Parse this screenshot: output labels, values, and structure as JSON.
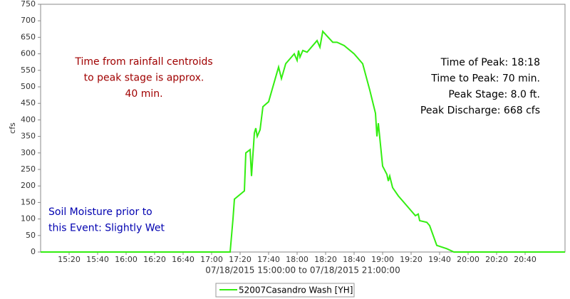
{
  "chart_data": {
    "type": "line",
    "y_label": "cfs",
    "x_label": "07/18/2015 15:00:00 to 07/18/2015 21:00:00",
    "x": [
      "15:00",
      "17:13",
      "17:15",
      "17:16",
      "17:23",
      "17:24",
      "17:27",
      "17:28",
      "17:30",
      "17:31",
      "17:32",
      "17:34",
      "17:36",
      "17:40",
      "17:45",
      "17:47",
      "17:49",
      "17:52",
      "17:56",
      "17:58",
      "18:00",
      "18:01",
      "18:02",
      "18:04",
      "18:07",
      "18:14",
      "18:16",
      "18:18",
      "18:25",
      "18:28",
      "18:33",
      "18:40",
      "18:46",
      "18:51",
      "18:55",
      "18:56",
      "18:57",
      "19:00",
      "19:03",
      "19:04",
      "19:05",
      "19:07",
      "19:11",
      "19:15",
      "19:20",
      "19:23",
      "19:25",
      "19:26",
      "19:31",
      "19:33",
      "19:38",
      "19:45",
      "19:50",
      "21:08"
    ],
    "series": [
      {
        "name": "52007Casandro Wash [YH]",
        "color": "#33ee11",
        "values": [
          0,
          0,
          100,
          160,
          185,
          300,
          310,
          230,
          360,
          375,
          350,
          370,
          440,
          455,
          530,
          560,
          525,
          570,
          590,
          600,
          580,
          610,
          590,
          610,
          605,
          640,
          620,
          668,
          635,
          635,
          625,
          600,
          570,
          490,
          420,
          350,
          390,
          260,
          235,
          215,
          230,
          195,
          170,
          150,
          125,
          110,
          115,
          95,
          90,
          80,
          20,
          10,
          0,
          0
        ]
      }
    ],
    "xlim": [
      "15:00",
      "21:08"
    ],
    "xticks": [
      "15:20",
      "15:40",
      "16:00",
      "16:20",
      "16:40",
      "17:00",
      "17:20",
      "17:40",
      "18:00",
      "18:20",
      "18:40",
      "19:00",
      "19:20",
      "19:40",
      "20:00",
      "20:20",
      "20:40"
    ],
    "ylim": [
      0,
      750
    ],
    "yticks": [
      0,
      50,
      100,
      150,
      200,
      250,
      300,
      350,
      400,
      450,
      500,
      550,
      600,
      650,
      700,
      750
    ],
    "annotations": [
      {
        "lines": [
          "Time from rainfall centroids",
          "to peak stage is approx.",
          "40 min."
        ],
        "color": "#a00000"
      },
      {
        "lines": [
          "Time of Peak: 18:18",
          "Time to Peak: 70 min.",
          "Peak Stage: 8.0 ft.",
          "Peak Discharge: 668 cfs"
        ],
        "color": "#000000"
      },
      {
        "lines": [
          "Soil Moisture prior to",
          "this Event: Slightly Wet"
        ],
        "color": "#0000b0"
      }
    ]
  }
}
